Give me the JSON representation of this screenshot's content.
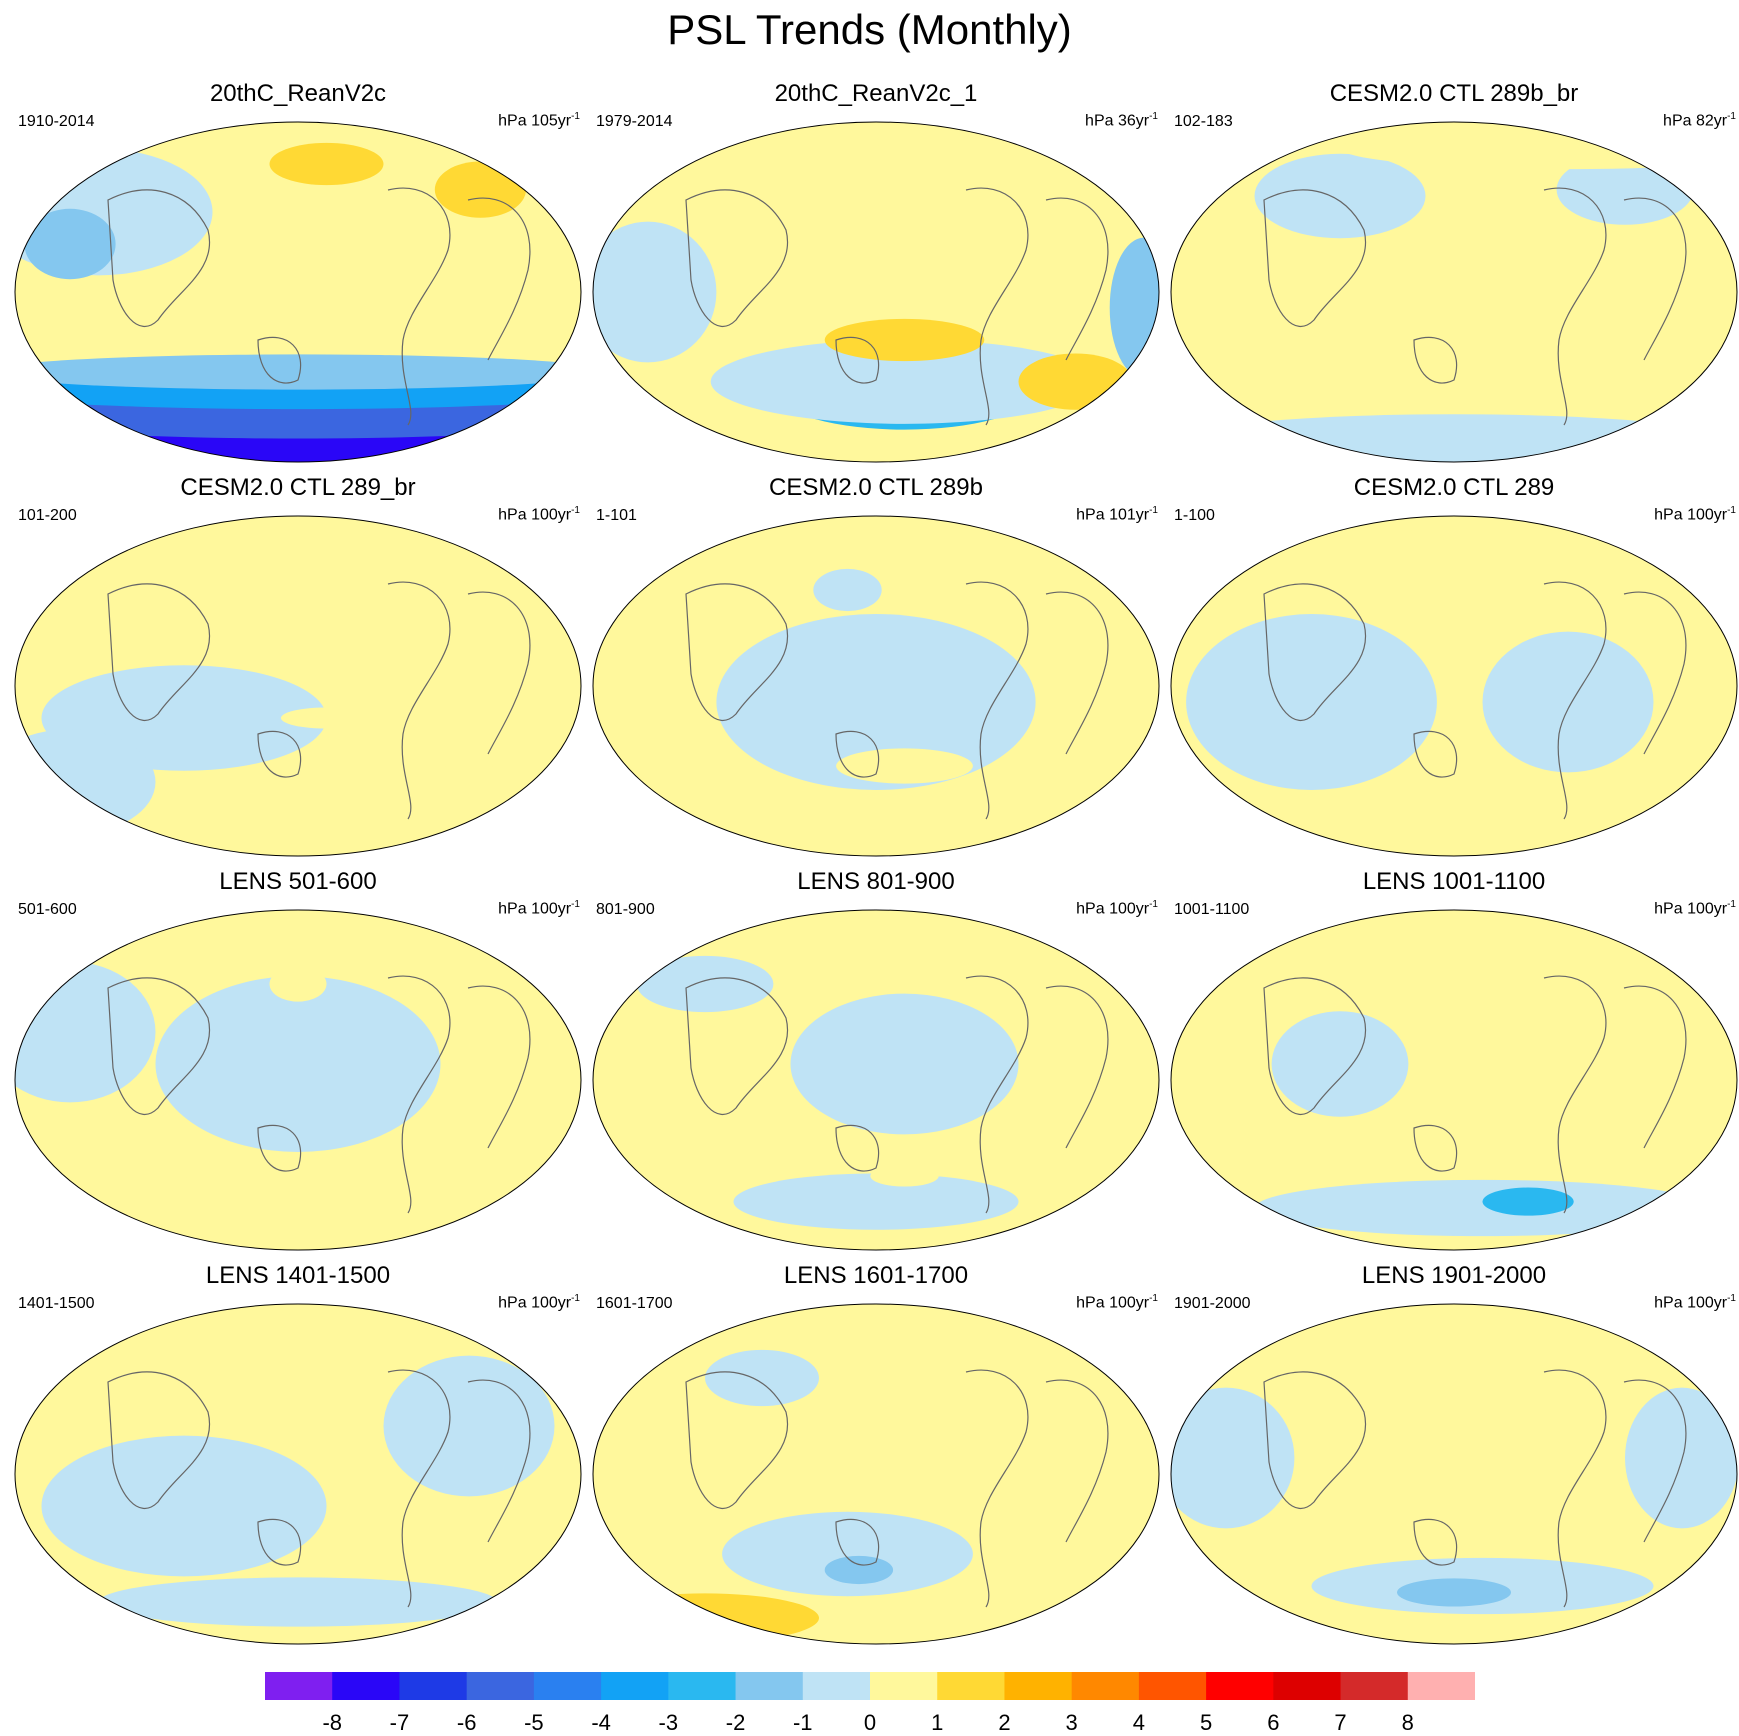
{
  "title": "PSL Trends (Monthly)",
  "units_base": "hPa",
  "units_suffix": "yr",
  "units_exponent": "-1",
  "panels": [
    {
      "title": "20thC_ReanV2c",
      "period": "1910-2014",
      "trend_years": "105",
      "blobs": [
        [
          0.55,
          0.95,
          0.6,
          0.09,
          -8
        ],
        [
          0.5,
          0.87,
          0.62,
          0.08,
          -6
        ],
        [
          0.5,
          0.8,
          0.6,
          0.06,
          -4
        ],
        [
          0.5,
          0.75,
          0.55,
          0.05,
          -2
        ],
        [
          0.15,
          0.25,
          0.2,
          0.18,
          -1
        ],
        [
          0.1,
          0.35,
          0.08,
          0.1,
          -2
        ],
        [
          0.55,
          0.1,
          0.1,
          0.06,
          2
        ],
        [
          0.82,
          0.18,
          0.08,
          0.08,
          2
        ],
        [
          0.12,
          0.65,
          0.08,
          0.05,
          1
        ],
        [
          0.5,
          0.42,
          0.06,
          0.02,
          1
        ]
      ]
    },
    {
      "title": "20thC_ReanV2c_1",
      "period": "1979-2014",
      "trend_years": "36",
      "blobs": [
        [
          0.55,
          0.82,
          0.22,
          0.1,
          -3
        ],
        [
          0.55,
          0.78,
          0.34,
          0.12,
          -1
        ],
        [
          0.1,
          0.5,
          0.12,
          0.2,
          -1
        ],
        [
          0.97,
          0.55,
          0.06,
          0.2,
          -2
        ],
        [
          0.42,
          0.25,
          0.1,
          0.1,
          1
        ],
        [
          0.55,
          0.65,
          0.14,
          0.06,
          2
        ],
        [
          0.85,
          0.78,
          0.1,
          0.08,
          2
        ],
        [
          0.2,
          0.05,
          0.1,
          0.06,
          1
        ],
        [
          0.7,
          0.03,
          0.2,
          0.05,
          1
        ]
      ]
    },
    {
      "title": "CESM2.0 CTL 289b_br",
      "period": "102-183",
      "trend_years": "82",
      "blobs": [
        [
          0.5,
          0.97,
          0.5,
          0.08,
          -1
        ],
        [
          0.3,
          0.2,
          0.15,
          0.12,
          -1
        ],
        [
          0.8,
          0.18,
          0.12,
          0.1,
          -1
        ],
        [
          0.7,
          0.05,
          0.4,
          0.06,
          1
        ]
      ]
    },
    {
      "title": "CESM2.0 CTL 289_br",
      "period": "101-200",
      "trend_years": "100",
      "blobs": [
        [
          0.3,
          0.6,
          0.25,
          0.15,
          -1
        ],
        [
          0.45,
          0.25,
          0.06,
          0.06,
          1
        ],
        [
          0.55,
          0.6,
          0.08,
          0.03,
          1
        ],
        [
          0.8,
          0.72,
          0.06,
          0.04,
          1
        ],
        [
          0.1,
          0.8,
          0.15,
          0.15,
          -1
        ],
        [
          0.8,
          0.2,
          0.05,
          0.05,
          1
        ]
      ]
    },
    {
      "title": "CESM2.0 CTL 289b",
      "period": "1-101",
      "trend_years": "101",
      "blobs": [
        [
          0.5,
          0.55,
          0.28,
          0.25,
          -1
        ],
        [
          0.45,
          0.2,
          0.06,
          0.06,
          -1
        ],
        [
          0.55,
          0.75,
          0.12,
          0.05,
          1
        ],
        [
          0.15,
          0.8,
          0.06,
          0.04,
          1
        ],
        [
          0.65,
          0.1,
          0.1,
          0.05,
          1
        ]
      ]
    },
    {
      "title": "CESM2.0 CTL 289",
      "period": "1-100",
      "trend_years": "100",
      "blobs": [
        [
          0.25,
          0.55,
          0.22,
          0.25,
          -1
        ],
        [
          0.7,
          0.55,
          0.15,
          0.2,
          -1
        ],
        [
          0.35,
          0.05,
          0.1,
          0.05,
          1
        ],
        [
          0.85,
          0.3,
          0.08,
          0.1,
          1
        ]
      ]
    },
    {
      "title": "LENS 501-600",
      "period": "501-600",
      "trend_years": "100",
      "blobs": [
        [
          0.5,
          0.45,
          0.25,
          0.25,
          -1
        ],
        [
          0.1,
          0.35,
          0.15,
          0.2,
          -1
        ],
        [
          0.5,
          0.82,
          0.2,
          0.07,
          1
        ],
        [
          0.5,
          0.2,
          0.05,
          0.05,
          1
        ],
        [
          0.8,
          0.2,
          0.05,
          0.05,
          1
        ]
      ]
    },
    {
      "title": "LENS 801-900",
      "period": "801-900",
      "trend_years": "100",
      "blobs": [
        [
          0.55,
          0.45,
          0.2,
          0.2,
          -1
        ],
        [
          0.2,
          0.2,
          0.12,
          0.08,
          -1
        ],
        [
          0.5,
          0.88,
          0.25,
          0.08,
          -1
        ],
        [
          0.55,
          0.8,
          0.06,
          0.03,
          1
        ]
      ]
    },
    {
      "title": "LENS 1001-1100",
      "period": "1001-1100",
      "trend_years": "100",
      "blobs": [
        [
          0.55,
          0.9,
          0.4,
          0.08,
          -1
        ],
        [
          0.63,
          0.88,
          0.08,
          0.04,
          -3
        ],
        [
          0.3,
          0.45,
          0.12,
          0.15,
          -1
        ],
        [
          0.15,
          0.77,
          0.06,
          0.03,
          1
        ],
        [
          0.45,
          0.77,
          0.07,
          0.03,
          1
        ],
        [
          0.8,
          0.77,
          0.05,
          0.03,
          1
        ],
        [
          0.4,
          0.05,
          0.2,
          0.05,
          1
        ]
      ]
    },
    {
      "title": "LENS 1401-1500",
      "period": "1401-1500",
      "trend_years": "100",
      "blobs": [
        [
          0.3,
          0.6,
          0.25,
          0.2,
          -1
        ],
        [
          0.8,
          0.35,
          0.15,
          0.2,
          -1
        ],
        [
          0.5,
          0.9,
          0.35,
          0.07,
          -1
        ],
        [
          0.25,
          0.02,
          0.15,
          0.04,
          1
        ]
      ]
    },
    {
      "title": "LENS 1601-1700",
      "period": "1601-1700",
      "trend_years": "100",
      "blobs": [
        [
          0.45,
          0.75,
          0.22,
          0.12,
          -1
        ],
        [
          0.47,
          0.8,
          0.06,
          0.04,
          -2
        ],
        [
          0.3,
          0.2,
          0.1,
          0.08,
          -1
        ],
        [
          0.2,
          0.95,
          0.2,
          0.07,
          2
        ]
      ]
    },
    {
      "title": "LENS 1901-2000",
      "period": "1901-2000",
      "trend_years": "100",
      "blobs": [
        [
          0.55,
          0.85,
          0.3,
          0.08,
          -1
        ],
        [
          0.5,
          0.87,
          0.1,
          0.04,
          -2
        ],
        [
          0.1,
          0.45,
          0.12,
          0.2,
          -1
        ],
        [
          0.9,
          0.45,
          0.1,
          0.2,
          -1
        ]
      ]
    }
  ],
  "colorbar": {
    "levels": [
      "-8",
      "-7",
      "-6",
      "-5",
      "-4",
      "-3",
      "-2",
      "-1",
      "0",
      "1",
      "2",
      "3",
      "4",
      "5",
      "6",
      "7",
      "8"
    ],
    "colors": [
      "#7f1ff0",
      "#2a06f7",
      "#1e3ae6",
      "#3b66e0",
      "#2a80f0",
      "#12a2f5",
      "#2ab8f0",
      "#84c7ef",
      "#bfe3f5",
      "#fff89c",
      "#ffd934",
      "#ffb200",
      "#ff8800",
      "#ff5500",
      "#ff0000",
      "#dd0000",
      "#d42a2a",
      "#ffb0b0"
    ]
  }
}
